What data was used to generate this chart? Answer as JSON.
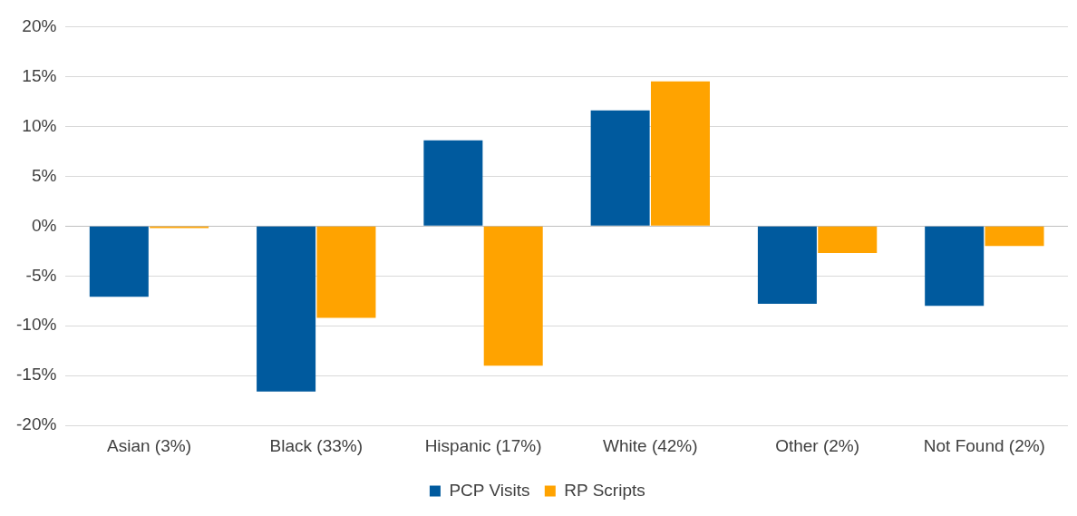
{
  "chart_data": {
    "type": "bar",
    "categories": [
      "Asian (3%)",
      "Black (33%)",
      "Hispanic (17%)",
      "White (42%)",
      "Other (2%)",
      "Not Found (2%)"
    ],
    "series": [
      {
        "name": "PCP Visits",
        "color": "#005a9e",
        "values": [
          -7.1,
          -16.6,
          8.6,
          11.6,
          -7.8,
          -8.0
        ]
      },
      {
        "name": "RP Scripts",
        "color": "#ffa300",
        "values": [
          -0.2,
          -9.2,
          -14.0,
          14.5,
          -2.7,
          -2.0
        ]
      }
    ],
    "ylim": [
      -20,
      20
    ],
    "yticks": [
      {
        "value": -20,
        "label": "-20%"
      },
      {
        "value": -15,
        "label": "-15%"
      },
      {
        "value": -10,
        "label": "-10%"
      },
      {
        "value": -5,
        "label": "-5%"
      },
      {
        "value": 0,
        "label": "0%"
      },
      {
        "value": 5,
        "label": "5%"
      },
      {
        "value": 10,
        "label": "10%"
      },
      {
        "value": 15,
        "label": "15%"
      },
      {
        "value": 20,
        "label": "20%"
      }
    ],
    "grid": "y",
    "legend": "bottom"
  }
}
